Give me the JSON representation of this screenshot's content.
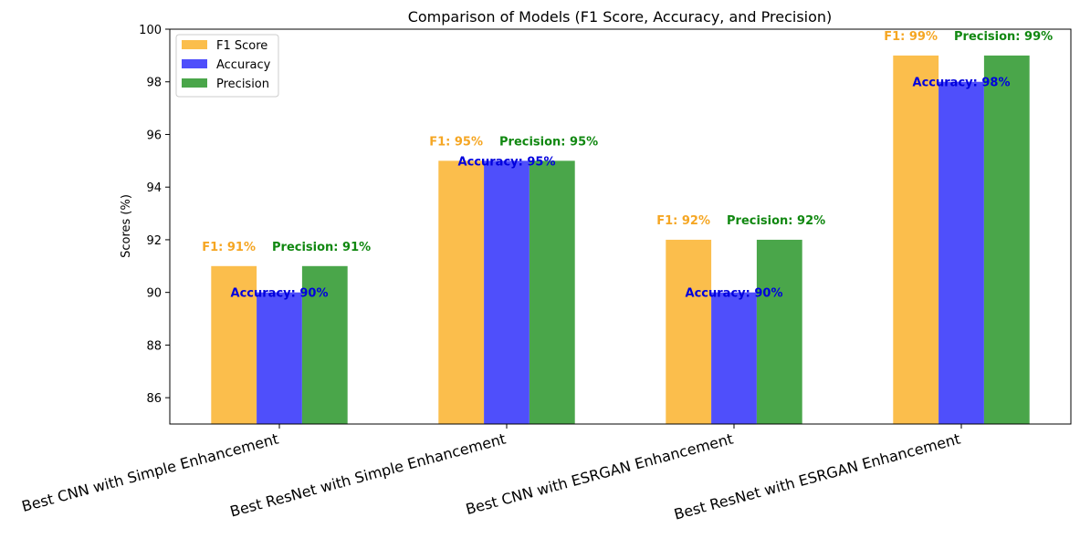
{
  "chart_data": {
    "type": "bar",
    "title": "Comparison of Models (F1 Score, Accuracy, and Precision)",
    "xlabel": "",
    "ylabel": "Scores (%)",
    "ylim": [
      85,
      100
    ],
    "yticks": [
      86,
      88,
      90,
      92,
      94,
      96,
      98,
      100
    ],
    "categories": [
      "Best CNN with Simple Enhancement",
      "Best ResNet with Simple Enhancement",
      "Best CNN with ESRGAN Enhancement",
      "Best ResNet with ESRGAN Enhancement"
    ],
    "series": [
      {
        "name": "F1 Score",
        "color": "#fbbe4c",
        "label_color": "#f5a623",
        "values": [
          91,
          95,
          92,
          99
        ],
        "labels": [
          "F1: 91%",
          "F1: 95%",
          "F1: 92%",
          "F1: 99%"
        ]
      },
      {
        "name": "Accuracy",
        "color": "#4f4ffb",
        "label_color": "#0000dd",
        "values": [
          90,
          95,
          90,
          98
        ],
        "labels": [
          "Accuracy: 90%",
          "Accuracy: 95%",
          "Accuracy: 90%",
          "Accuracy: 98%"
        ]
      },
      {
        "name": "Precision",
        "color": "#4aa64a",
        "label_color": "#118811",
        "values": [
          91,
          95,
          92,
          99
        ],
        "labels": [
          "Precision: 91%",
          "Precision: 95%",
          "Precision: 92%",
          "Precision: 99%"
        ]
      }
    ],
    "legend_position": "top-left",
    "grid": false
  }
}
